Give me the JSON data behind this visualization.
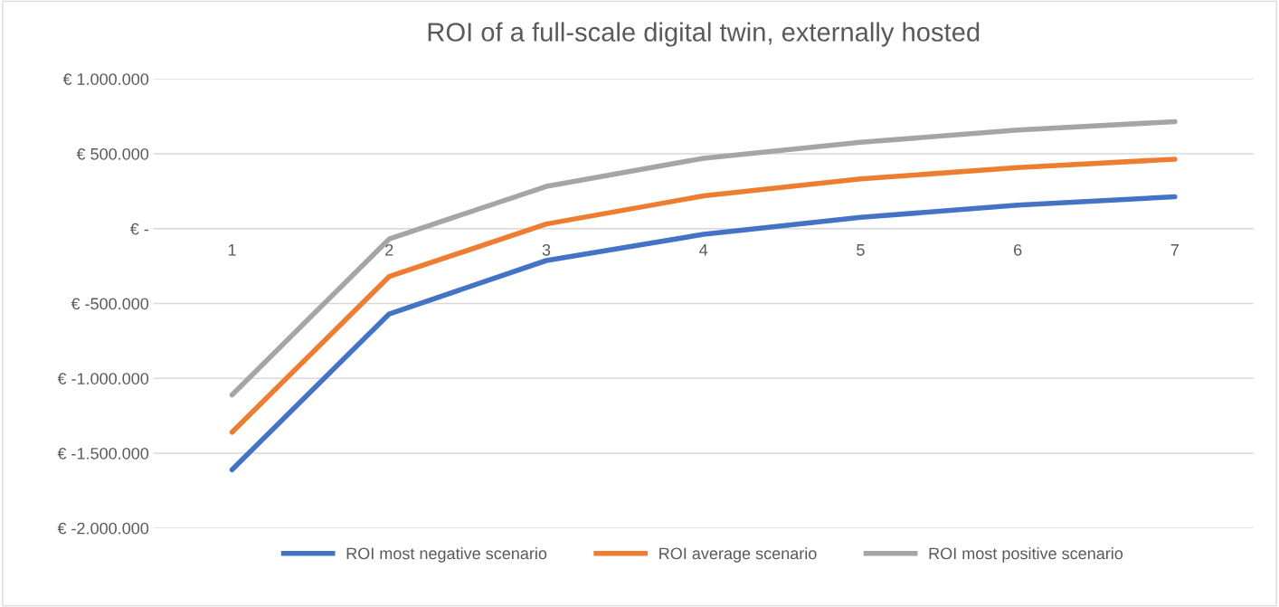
{
  "chart_data": {
    "type": "line",
    "title": "ROI of a full-scale digital twin, externally hosted",
    "categories": [
      "1",
      "2",
      "3",
      "4",
      "5",
      "6",
      "7"
    ],
    "series": [
      {
        "name": "ROI most negative scenario",
        "color": "#4472c4",
        "values": [
          -1610000,
          -570000,
          -213000,
          -38000,
          75000,
          157000,
          213000
        ]
      },
      {
        "name": "ROI average scenario",
        "color": "#ed7d31",
        "values": [
          -1360000,
          -320000,
          31000,
          219000,
          332000,
          408000,
          464000
        ]
      },
      {
        "name": "ROI most positive scenario",
        "color": "#a5a5a5",
        "values": [
          -1110000,
          -69000,
          282000,
          470000,
          577000,
          658000,
          715000
        ]
      }
    ],
    "ylim": [
      -2000000,
      1000000
    ],
    "yticks": [
      {
        "value": -2000000,
        "label": "€ -2.000.000"
      },
      {
        "value": -1500000,
        "label": "€ -1.500.000"
      },
      {
        "value": -1000000,
        "label": "€ -1.000.000"
      },
      {
        "value": -500000,
        "label": "€ -500.000"
      },
      {
        "value": 0,
        "label": "€ -"
      },
      {
        "value": 500000,
        "label": "€ 500.000"
      },
      {
        "value": 1000000,
        "label": "€ 1.000.000"
      }
    ],
    "grid": "y",
    "legend": "bottom",
    "marker": "none",
    "line_style": "solid"
  }
}
